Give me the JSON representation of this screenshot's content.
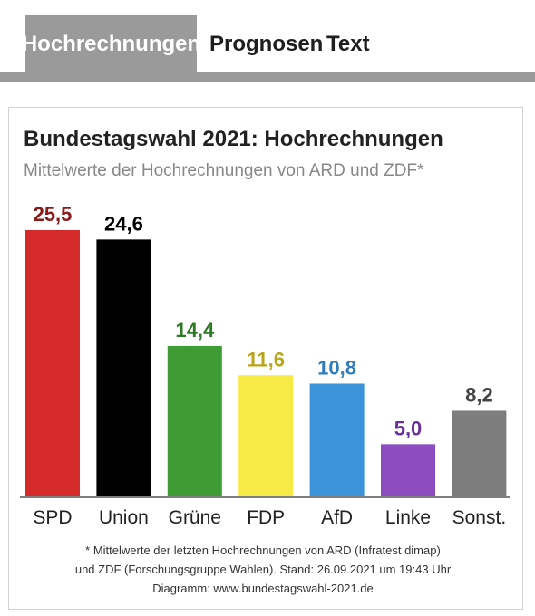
{
  "tabs": [
    {
      "label": "Hochrechnungen",
      "active": true
    },
    {
      "label": "Prognosen",
      "active": false
    },
    {
      "label": "Text",
      "active": false
    }
  ],
  "colors": {
    "tab_gray": "#9a9a9a",
    "SPD": "#d42a2a",
    "Union": "#000000",
    "Grüne": "#3f9c35",
    "FDP": "#f7e946",
    "AfD": "#3b93d9",
    "Linke": "#8c4cc0",
    "Sonst.": "#7d7d7d"
  },
  "chart_data": {
    "type": "bar",
    "title": "Bundestagswahl 2021: Hochrechnungen",
    "subtitle": "Mittelwerte der Hochrechnungen von ARD und ZDF*",
    "categories": [
      "SPD",
      "Union",
      "Grüne",
      "FDP",
      "AfD",
      "Linke",
      "Sonst."
    ],
    "values": [
      25.5,
      24.6,
      14.4,
      11.6,
      10.8,
      5.0,
      8.2
    ],
    "value_labels": [
      "25,5",
      "24,6",
      "14,4",
      "11,6",
      "10,8",
      "5,0",
      "8,2"
    ],
    "bar_colors": [
      "#d42a2a",
      "#000000",
      "#3f9c35",
      "#f7e946",
      "#3b93d9",
      "#8c4cc0",
      "#7d7d7d"
    ],
    "label_colors": [
      "#8b1a1a",
      "#000000",
      "#2e7a26",
      "#b8a51a",
      "#2f7dbb",
      "#6a2f9c",
      "#444444"
    ],
    "ylim": [
      0,
      25.5
    ],
    "grid": false,
    "legend": "none"
  },
  "footnote": {
    "line1": "* Mittelwerte der letzten Hochrechnungen von ARD (Infratest dimap)",
    "line2": "und ZDF (Forschungsgruppe Wahlen). Stand: 26.09.2021 um 19:43 Uhr",
    "line3": "Diagramm: www.bundestagswahl-2021.de"
  }
}
